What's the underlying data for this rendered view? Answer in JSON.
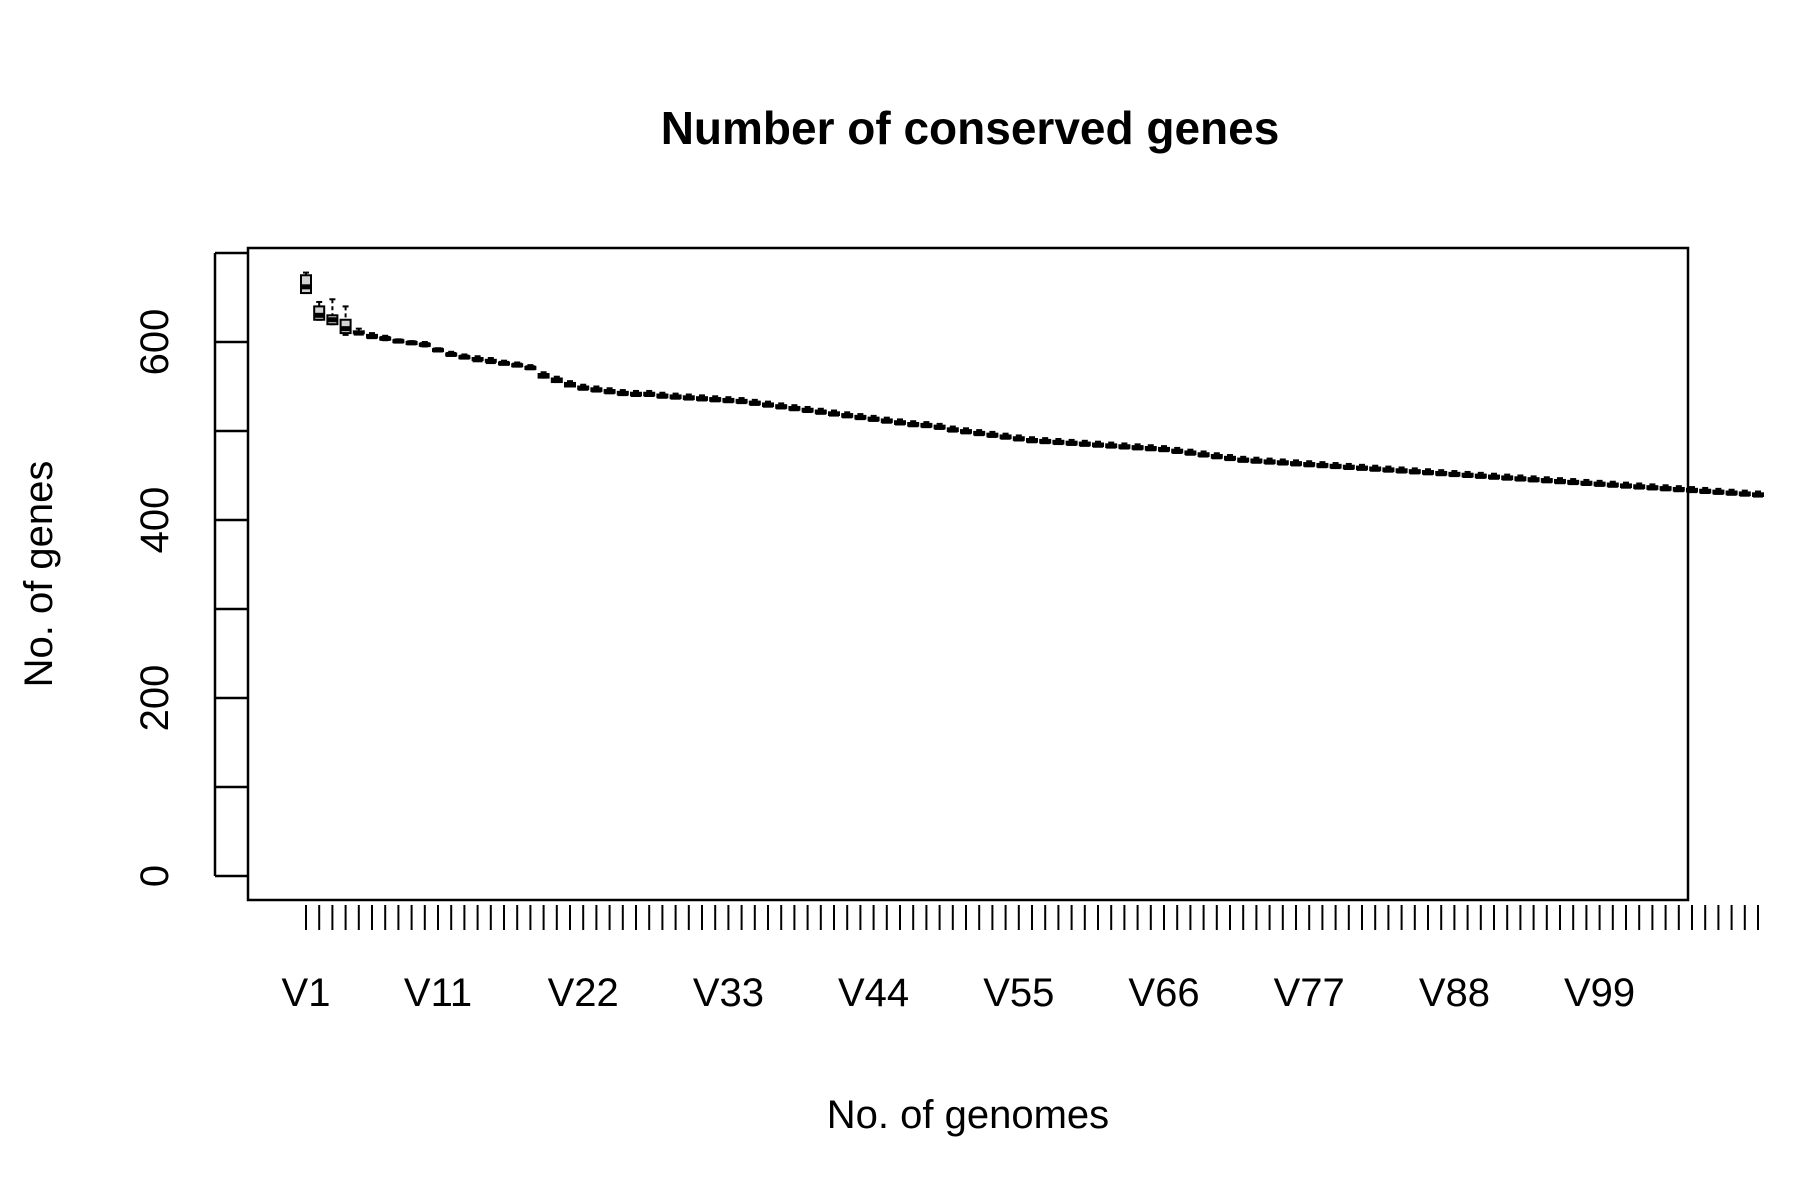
{
  "chart_data": {
    "type": "box",
    "title": "Number of conserved genes",
    "xlabel": "No. of genomes",
    "ylabel": "No. of genes",
    "ylim": [
      0,
      700
    ],
    "yticks": [
      0,
      200,
      400,
      600
    ],
    "shown_x_tick_labels": [
      "V1",
      "V11",
      "V22",
      "V33",
      "V44",
      "V55",
      "V66",
      "V77",
      "V88",
      "V99"
    ],
    "grid": false,
    "legend": "none",
    "series": [
      {
        "categories": [
          "V1",
          "V2",
          "V3",
          "V4",
          "V5",
          "V6",
          "V7",
          "V8",
          "V9",
          "V10",
          "V11",
          "V12",
          "V13",
          "V14",
          "V15",
          "V16",
          "V17",
          "V18",
          "V19",
          "V20",
          "V21",
          "V22",
          "V23",
          "V24",
          "V25",
          "V26",
          "V27",
          "V28",
          "V29",
          "V30",
          "V31",
          "V32",
          "V33",
          "V34",
          "V35",
          "V36",
          "V37",
          "V38",
          "V39",
          "V40",
          "V41",
          "V42",
          "V43",
          "V44",
          "V45",
          "V46",
          "V47",
          "V48",
          "V49",
          "V50",
          "V51",
          "V52",
          "V53",
          "V54",
          "V55",
          "V56",
          "V57",
          "V58",
          "V59",
          "V60",
          "V61",
          "V62",
          "V63",
          "V64",
          "V65",
          "V66",
          "V67",
          "V68",
          "V69",
          "V70",
          "V71",
          "V72",
          "V73",
          "V74",
          "V75",
          "V76",
          "V77",
          "V78",
          "V79",
          "V80",
          "V81",
          "V82",
          "V83",
          "V84",
          "V85",
          "V86",
          "V87",
          "V88",
          "V89",
          "V90",
          "V91",
          "V92",
          "V93",
          "V94",
          "V95",
          "V96",
          "V97",
          "V98",
          "V99",
          "V100",
          "V101",
          "V102",
          "V103",
          "V104",
          "V105",
          "V106",
          "V107",
          "V108",
          "V109",
          "V110",
          "V111"
        ],
        "min": [
          655,
          625,
          620,
          608,
          610,
          605,
          602,
          600,
          598,
          595,
          590,
          585,
          582,
          580,
          578,
          575,
          573,
          570,
          560,
          555,
          550,
          547,
          545,
          543,
          541,
          540,
          540,
          538,
          537,
          536,
          535,
          534,
          533,
          532,
          530,
          528,
          526,
          524,
          522,
          520,
          518,
          516,
          514,
          512,
          510,
          508,
          506,
          505,
          503,
          500,
          498,
          496,
          494,
          492,
          490,
          488,
          487,
          486,
          485,
          484,
          483,
          482,
          481,
          480,
          479,
          478,
          476,
          474,
          472,
          470,
          468,
          466,
          465,
          464,
          463,
          462,
          461,
          460,
          459,
          458,
          457,
          456,
          455,
          454,
          453,
          452,
          451,
          450,
          449,
          448,
          447,
          446,
          445,
          444,
          443,
          442,
          441,
          440,
          439,
          438,
          437,
          436,
          435,
          434,
          433,
          432,
          431,
          430,
          429,
          428,
          427
        ],
        "q1": [
          655,
          625,
          620,
          610,
          610,
          605,
          603,
          600,
          598,
          596,
          590,
          585,
          582,
          580,
          578,
          575,
          573,
          570,
          560,
          555,
          550,
          547,
          545,
          543,
          541,
          540,
          540,
          538,
          537,
          536,
          535,
          534,
          533,
          532,
          530,
          528,
          526,
          524,
          522,
          520,
          518,
          516,
          514,
          512,
          510,
          508,
          506,
          505,
          503,
          500,
          498,
          496,
          494,
          492,
          490,
          488,
          487,
          486,
          485,
          484,
          483,
          482,
          481,
          480,
          479,
          478,
          476,
          474,
          472,
          470,
          468,
          466,
          465,
          464,
          463,
          462,
          461,
          460,
          459,
          458,
          457,
          456,
          455,
          454,
          453,
          452,
          451,
          450,
          449,
          448,
          447,
          446,
          445,
          444,
          443,
          442,
          441,
          440,
          439,
          438,
          437,
          436,
          435,
          434,
          433,
          432,
          431,
          430,
          429,
          428,
          427
        ],
        "median": [
          662,
          630,
          625,
          615,
          610,
          606,
          604,
          601,
          599,
          597,
          591,
          586,
          583,
          580,
          578,
          576,
          574,
          571,
          562,
          557,
          552,
          548,
          546,
          544,
          542,
          541,
          541,
          539,
          538,
          537,
          536,
          535,
          534,
          533,
          531,
          529,
          527,
          525,
          523,
          521,
          519,
          517,
          515,
          513,
          511,
          509,
          507,
          506,
          504,
          501,
          499,
          497,
          495,
          493,
          491,
          489,
          488,
          487,
          486,
          485,
          484,
          483,
          482,
          481,
          480,
          479,
          477,
          475,
          473,
          471,
          469,
          467,
          466,
          465,
          464,
          463,
          462,
          461,
          460,
          459,
          458,
          457,
          456,
          455,
          454,
          453,
          452,
          451,
          450,
          449,
          448,
          447,
          446,
          445,
          444,
          443,
          442,
          441,
          440,
          439,
          438,
          437,
          436,
          435,
          434,
          433,
          432,
          431,
          430,
          429,
          428
        ],
        "q3": [
          675,
          640,
          630,
          625,
          612,
          608,
          605,
          602,
          600,
          598,
          592,
          587,
          584,
          582,
          580,
          577,
          575,
          572,
          564,
          559,
          554,
          550,
          548,
          546,
          544,
          543,
          543,
          541,
          540,
          539,
          538,
          537,
          536,
          535,
          533,
          531,
          529,
          527,
          525,
          523,
          521,
          519,
          517,
          515,
          513,
          511,
          509,
          508,
          506,
          503,
          501,
          499,
          497,
          495,
          493,
          491,
          490,
          489,
          488,
          487,
          486,
          485,
          484,
          483,
          482,
          481,
          479,
          477,
          475,
          473,
          471,
          469,
          468,
          467,
          466,
          465,
          464,
          463,
          462,
          461,
          460,
          459,
          458,
          457,
          456,
          455,
          454,
          453,
          452,
          451,
          450,
          449,
          448,
          447,
          446,
          445,
          444,
          443,
          442,
          441,
          440,
          439,
          438,
          437,
          436,
          435,
          434,
          433,
          432,
          431,
          430
        ],
        "max": [
          678,
          645,
          648,
          640,
          615,
          610,
          607,
          603,
          601,
          600,
          593,
          589,
          586,
          584,
          582,
          579,
          577,
          574,
          566,
          561,
          556,
          552,
          550,
          548,
          546,
          545,
          545,
          543,
          542,
          541,
          540,
          539,
          538,
          537,
          535,
          533,
          531,
          529,
          527,
          525,
          523,
          521,
          519,
          517,
          515,
          513,
          511,
          510,
          508,
          505,
          503,
          501,
          499,
          497,
          495,
          493,
          492,
          491,
          490,
          489,
          488,
          487,
          486,
          485,
          484,
          483,
          481,
          479,
          477,
          475,
          473,
          471,
          470,
          469,
          468,
          467,
          466,
          465,
          464,
          463,
          462,
          461,
          460,
          459,
          458,
          457,
          456,
          455,
          454,
          453,
          452,
          451,
          450,
          449,
          448,
          447,
          446,
          445,
          444,
          443,
          442,
          441,
          440,
          439,
          438,
          437,
          436,
          435,
          434,
          433,
          432
        ]
      }
    ]
  }
}
